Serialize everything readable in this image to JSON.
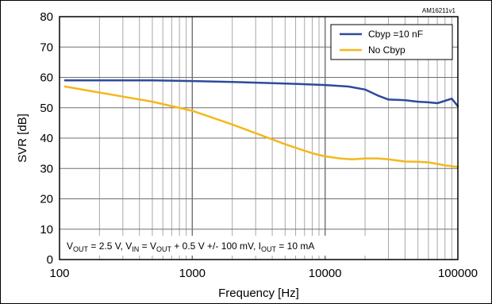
{
  "chart_data": {
    "type": "line",
    "code": "AM16211v1",
    "xlabel": "Frequency [Hz]",
    "ylabel": "SVR [dB]",
    "xscale": "log",
    "xlim": [
      100,
      100000
    ],
    "ylim": [
      0,
      80
    ],
    "x_ticks": [
      "100",
      "1000",
      "10000",
      "100000"
    ],
    "y_ticks": [
      "0",
      "10",
      "20",
      "30",
      "40",
      "50",
      "60",
      "70",
      "80"
    ],
    "grid": true,
    "legend_position": "top-right",
    "condition": {
      "v_out": {
        "main": "V",
        "sub": "OUT",
        "rest": " = 2.5 V, "
      },
      "v_in": {
        "main": "V",
        "sub": "IN",
        "rest": " = "
      },
      "v_out2": {
        "main": "V",
        "sub": "OUT",
        "rest": " + 0.5 V +/- 100 mV, "
      },
      "i_out": {
        "main": "I",
        "sub": "OUT",
        "rest": " = 10 mA"
      }
    },
    "series": [
      {
        "name": "Cbyp =10 nF",
        "color": "#2e4a9a",
        "x": [
          110,
          200,
          500,
          1000,
          2000,
          5000,
          10000,
          15000,
          20000,
          25000,
          30000,
          40000,
          50000,
          60000,
          70000,
          80000,
          90000,
          100000
        ],
        "y": [
          59,
          59,
          59,
          58.8,
          58.5,
          58,
          57.5,
          57,
          56,
          54,
          52.7,
          52.5,
          52,
          51.8,
          51.5,
          52.3,
          53,
          50.5
        ]
      },
      {
        "name": "No Cbyp",
        "color": "#f4b81c",
        "x": [
          110,
          200,
          500,
          1000,
          2000,
          5000,
          8000,
          10000,
          13000,
          16000,
          20000,
          25000,
          30000,
          40000,
          50000,
          60000,
          70000,
          80000,
          100000
        ],
        "y": [
          57,
          55,
          52,
          49,
          44.5,
          38,
          35,
          34,
          33.3,
          33,
          33.3,
          33.3,
          33,
          32.3,
          32.2,
          32,
          31.5,
          31,
          30.5
        ]
      }
    ]
  }
}
